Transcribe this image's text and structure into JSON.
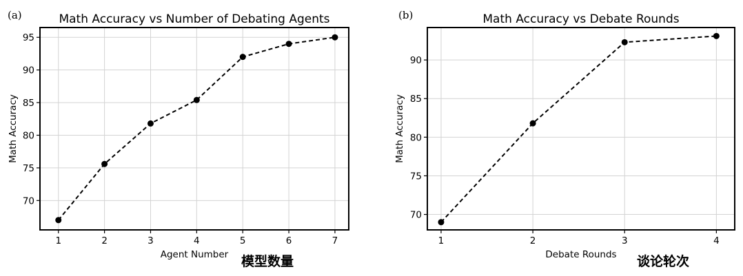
{
  "chart_data": [
    {
      "type": "line",
      "panel_label": "(a)",
      "title": "Math Accuracy vs Number of Debating Agents",
      "xlabel": "Agent Number",
      "ylabel": "Math Accuracy",
      "annotation": "模型数量",
      "x": [
        1,
        2,
        3,
        4,
        5,
        6,
        7
      ],
      "y": [
        67.0,
        75.6,
        81.8,
        85.4,
        92.0,
        94.0,
        95.0
      ],
      "xlim": [
        0.6,
        7.3
      ],
      "ylim": [
        65.5,
        96.5
      ],
      "xticks": [
        1,
        2,
        3,
        4,
        5,
        6,
        7
      ],
      "yticks": [
        70,
        75,
        80,
        85,
        90,
        95
      ],
      "grid": true,
      "line_style": "dashed",
      "marker": "circle",
      "color": "#000000"
    },
    {
      "type": "line",
      "panel_label": "(b)",
      "title": "Math Accuracy vs Debate Rounds",
      "xlabel": "Debate Rounds",
      "ylabel": "Math Accuracy",
      "annotation": "谈论轮次",
      "x": [
        1,
        2,
        3,
        4
      ],
      "y": [
        69.0,
        81.8,
        92.3,
        93.1
      ],
      "xlim": [
        0.85,
        4.2
      ],
      "ylim": [
        68.0,
        94.2
      ],
      "xticks": [
        1,
        2,
        3,
        4
      ],
      "yticks": [
        70,
        75,
        80,
        85,
        90
      ],
      "grid": true,
      "line_style": "dashed",
      "marker": "circle",
      "color": "#000000"
    }
  ]
}
